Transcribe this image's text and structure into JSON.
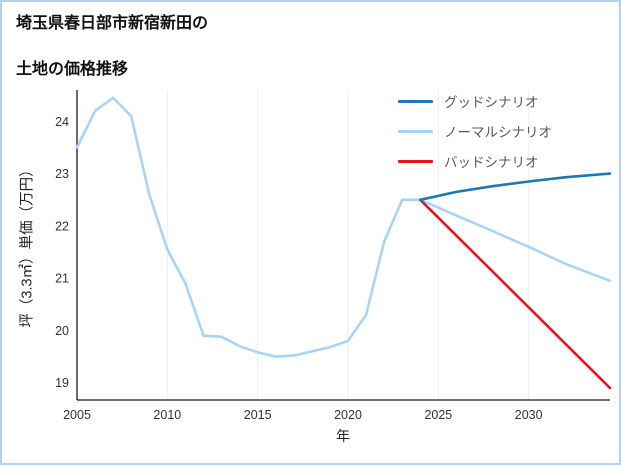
{
  "title": {
    "line1": "埼玉県春日部市新宿新田の",
    "line2": "土地の価格推移"
  },
  "chart_data": {
    "type": "line",
    "title": "埼玉県春日部市新宿新田の土地の価格推移",
    "xlabel": "年",
    "ylabel": "坪（3.3㎡）単価（万円）",
    "xlim": [
      2005,
      2034.5
    ],
    "ylim": [
      18.67,
      24.6
    ],
    "xticks": [
      2005,
      2010,
      2015,
      2020,
      2025,
      2030
    ],
    "yticks": [
      19,
      20,
      21,
      22,
      23,
      24
    ],
    "grid": "faint-vertical",
    "legend_position": "upper-right",
    "series": [
      {
        "name": "グッドシナリオ",
        "color": "#1f77b4",
        "x": [
          2024,
          2026,
          2028,
          2030,
          2032,
          2034.5
        ],
        "y": [
          22.5,
          22.65,
          22.76,
          22.85,
          22.93,
          23.0
        ]
      },
      {
        "name": "ノーマルシナリオ",
        "color": "#aad4f5",
        "x": [
          2005,
          2006,
          2007,
          2008,
          2009,
          2010,
          2011,
          2012,
          2013,
          2014,
          2015,
          2016,
          2017,
          2018,
          2019,
          2020,
          2021,
          2022,
          2023,
          2024,
          2026,
          2028,
          2030,
          2032,
          2034.5
        ],
        "y": [
          23.5,
          24.2,
          24.45,
          24.1,
          22.6,
          21.55,
          20.9,
          19.9,
          19.88,
          19.7,
          19.58,
          19.5,
          19.52,
          19.6,
          19.68,
          19.8,
          20.3,
          21.7,
          22.5,
          22.5,
          22.2,
          21.9,
          21.6,
          21.28,
          20.95
        ]
      },
      {
        "name": "バッドシナリオ",
        "color": "#e8141e",
        "x": [
          2024,
          2034.5
        ],
        "y": [
          22.5,
          18.9
        ]
      }
    ]
  }
}
